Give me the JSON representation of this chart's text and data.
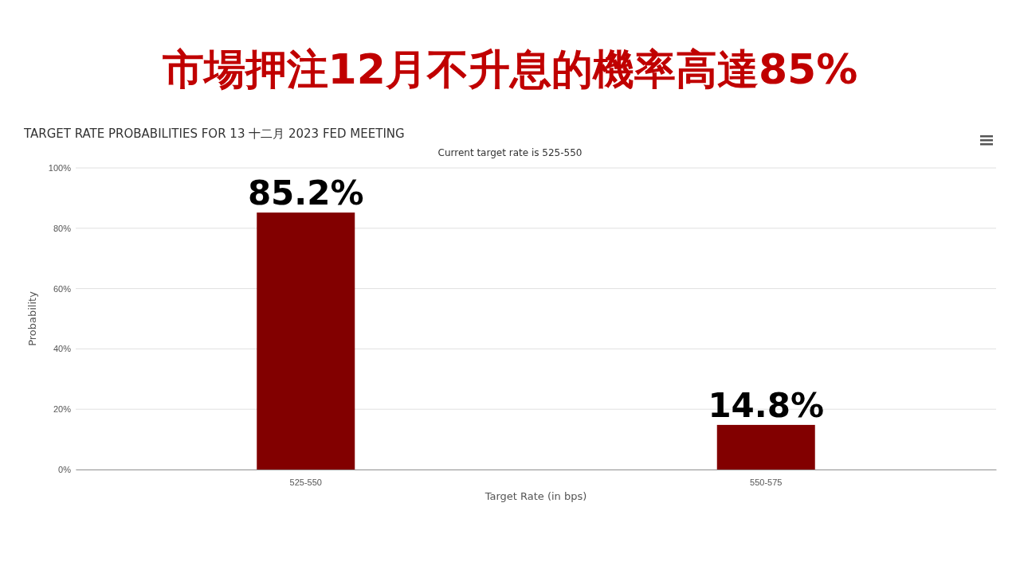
{
  "chart_data": {
    "type": "bar",
    "title": "市場押注12月不升息的機率高達85%",
    "subtitle": "TARGET RATE PROBABILITIES FOR 13 十二月 2023 FED MEETING",
    "annotations": [
      "Current target rate is 525-550"
    ],
    "xlabel": "Target Rate (in bps)",
    "ylabel": "Probability",
    "categories": [
      "525-550",
      "550-575"
    ],
    "values": [
      85.2,
      14.8
    ],
    "value_labels": [
      "85.2%",
      "14.8%"
    ],
    "color": "#820000",
    "ylim": [
      0,
      100
    ],
    "yticks": [
      {
        "value": 0,
        "label": "0%"
      },
      {
        "value": 20,
        "label": "20%"
      },
      {
        "value": 40,
        "label": "40%"
      },
      {
        "value": 60,
        "label": "60%"
      },
      {
        "value": 80,
        "label": "80%"
      },
      {
        "value": 100,
        "label": "100%"
      }
    ],
    "grid": "y"
  }
}
